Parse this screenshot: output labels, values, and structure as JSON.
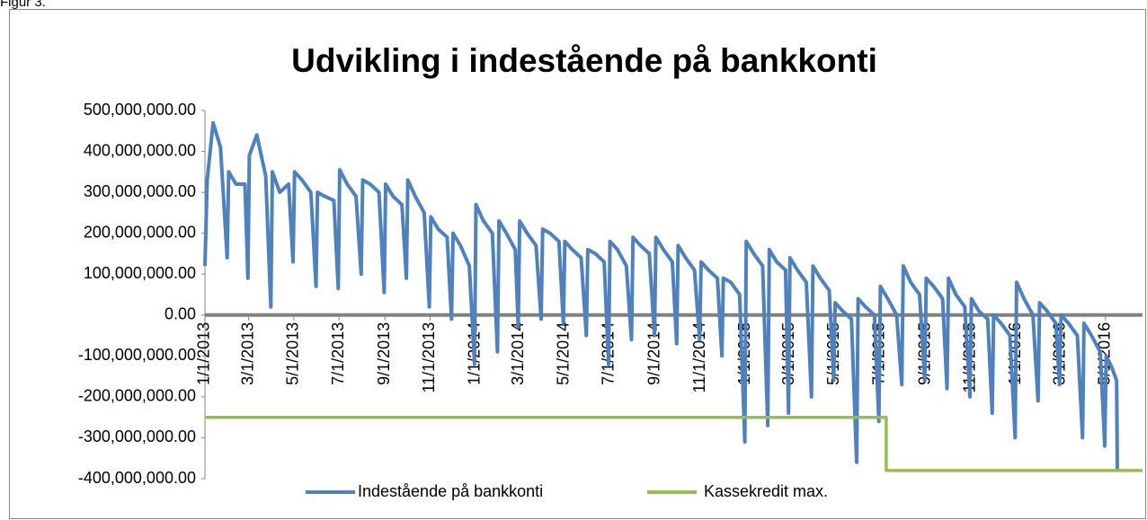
{
  "caption": "Figur 3.",
  "chart_data": {
    "type": "line",
    "title": "Udvikling i indestående på bankkonti",
    "xlim": [
      "1/1/2013",
      "6/20/2016"
    ],
    "xticks": [
      "1/1/2013",
      "3/1/2013",
      "5/1/2013",
      "7/1/2013",
      "9/1/2013",
      "11/1/2013",
      "1/1/2014",
      "3/1/2014",
      "5/1/2014",
      "7/1/2014",
      "9/1/2014",
      "11/1/2014",
      "1/1/2015",
      "3/1/2015",
      "5/1/2015",
      "7/1/2015",
      "9/1/2015",
      "11/1/2015",
      "1/1/2016",
      "3/1/2016",
      "5/1/2016"
    ],
    "ylim": [
      -400000000,
      500000000
    ],
    "yticks": [
      {
        "value": 500000000,
        "label": "500,000,000.00"
      },
      {
        "value": 400000000,
        "label": "400,000,000.00"
      },
      {
        "value": 300000000,
        "label": "300,000,000.00"
      },
      {
        "value": 200000000,
        "label": "200,000,000.00"
      },
      {
        "value": 100000000,
        "label": "100,000,000.00"
      },
      {
        "value": 0,
        "label": "0.00"
      },
      {
        "value": -100000000,
        "label": "-100,000,000.00"
      },
      {
        "value": -200000000,
        "label": "-200,000,000.00"
      },
      {
        "value": -300000000,
        "label": "-300,000,000.00"
      },
      {
        "value": -400000000,
        "label": "-400,000,000.00"
      }
    ],
    "legend": "bottom",
    "series": [
      {
        "name": "Indestående på bankkonti",
        "color": "#4f81bd",
        "x": [
          "1/1/2013",
          "1/4/2013",
          "1/12/2013",
          "1/22/2013",
          "1/31/2013",
          "2/2/2013",
          "2/12/2013",
          "2/24/2013",
          "2/28/2013",
          "3/2/2013",
          "3/12/2013",
          "3/24/2013",
          "3/31/2013",
          "4/2/2013",
          "4/12/2013",
          "4/24/2013",
          "4/30/2013",
          "5/2/2013",
          "5/12/2013",
          "5/24/2013",
          "5/31/2013",
          "6/2/2013",
          "6/12/2013",
          "6/24/2013",
          "6/30/2013",
          "7/2/2013",
          "7/12/2013",
          "7/24/2013",
          "7/31/2013",
          "8/2/2013",
          "8/12/2013",
          "8/24/2013",
          "8/31/2013",
          "9/2/2013",
          "9/12/2013",
          "9/24/2013",
          "9/30/2013",
          "10/2/2013",
          "10/12/2013",
          "10/24/2013",
          "10/31/2013",
          "11/2/2013",
          "11/12/2013",
          "11/24/2013",
          "11/30/2013",
          "12/2/2013",
          "12/12/2013",
          "12/24/2013",
          "12/31/2013",
          "1/2/2014",
          "1/12/2014",
          "1/24/2014",
          "1/31/2014",
          "2/2/2014",
          "2/12/2014",
          "2/24/2014",
          "2/28/2014",
          "3/2/2014",
          "3/12/2014",
          "3/24/2014",
          "3/31/2014",
          "4/2/2014",
          "4/12/2014",
          "4/24/2014",
          "4/30/2014",
          "5/2/2014",
          "5/12/2014",
          "5/24/2014",
          "5/31/2014",
          "6/2/2014",
          "6/12/2014",
          "6/24/2014",
          "6/30/2014",
          "7/2/2014",
          "7/12/2014",
          "7/24/2014",
          "7/31/2014",
          "8/2/2014",
          "8/12/2014",
          "8/24/2014",
          "8/31/2014",
          "9/2/2014",
          "9/12/2014",
          "9/24/2014",
          "9/30/2014",
          "10/2/2014",
          "10/12/2014",
          "10/24/2014",
          "10/31/2014",
          "11/2/2014",
          "11/12/2014",
          "11/24/2014",
          "11/30/2014",
          "12/2/2014",
          "12/12/2014",
          "12/24/2014",
          "12/31/2014",
          "1/2/2015",
          "1/12/2015",
          "1/24/2015",
          "1/31/2015",
          "2/2/2015",
          "2/12/2015",
          "2/24/2015",
          "2/28/2015",
          "3/2/2015",
          "3/12/2015",
          "3/24/2015",
          "3/31/2015",
          "4/2/2015",
          "4/12/2015",
          "4/24/2015",
          "4/30/2015",
          "5/2/2015",
          "5/12/2015",
          "5/24/2015",
          "5/31/2015",
          "6/2/2015",
          "6/12/2015",
          "6/24/2015",
          "6/30/2015",
          "7/2/2015",
          "7/12/2015",
          "7/24/2015",
          "7/31/2015",
          "8/2/2015",
          "8/12/2015",
          "8/24/2015",
          "8/31/2015",
          "9/2/2015",
          "9/12/2015",
          "9/24/2015",
          "9/30/2015",
          "10/2/2015",
          "10/12/2015",
          "10/24/2015",
          "10/31/2015",
          "11/2/2015",
          "11/12/2015",
          "11/24/2015",
          "11/30/2015",
          "12/2/2015",
          "12/12/2015",
          "12/24/2015",
          "12/31/2015",
          "1/2/2016",
          "1/12/2016",
          "1/24/2016",
          "1/31/2016",
          "2/2/2016",
          "2/12/2016",
          "2/24/2016",
          "2/29/2016",
          "3/2/2016",
          "3/12/2016",
          "3/24/2016",
          "3/31/2016",
          "4/2/2016",
          "4/12/2016",
          "4/24/2016",
          "4/30/2016",
          "5/2/2016",
          "5/10/2016",
          "5/16/2016",
          "5/17/2016"
        ],
        "values": [
          120000000,
          330000000,
          470000000,
          410000000,
          140000000,
          350000000,
          320000000,
          320000000,
          90000000,
          390000000,
          440000000,
          340000000,
          20000000,
          350000000,
          300000000,
          320000000,
          130000000,
          350000000,
          330000000,
          300000000,
          70000000,
          300000000,
          290000000,
          280000000,
          65000000,
          355000000,
          320000000,
          290000000,
          100000000,
          330000000,
          320000000,
          300000000,
          55000000,
          320000000,
          290000000,
          270000000,
          90000000,
          330000000,
          290000000,
          250000000,
          20000000,
          240000000,
          210000000,
          190000000,
          -10000000,
          200000000,
          170000000,
          120000000,
          -120000000,
          270000000,
          230000000,
          200000000,
          -90000000,
          230000000,
          200000000,
          160000000,
          -30000000,
          230000000,
          200000000,
          170000000,
          -10000000,
          210000000,
          200000000,
          180000000,
          -20000000,
          180000000,
          160000000,
          140000000,
          -50000000,
          160000000,
          150000000,
          130000000,
          -120000000,
          180000000,
          160000000,
          120000000,
          -60000000,
          190000000,
          170000000,
          150000000,
          -50000000,
          190000000,
          160000000,
          130000000,
          -70000000,
          170000000,
          140000000,
          110000000,
          -60000000,
          130000000,
          110000000,
          90000000,
          -100000000,
          90000000,
          80000000,
          50000000,
          -310000000,
          180000000,
          150000000,
          120000000,
          -270000000,
          160000000,
          130000000,
          110000000,
          -240000000,
          140000000,
          110000000,
          80000000,
          -200000000,
          120000000,
          90000000,
          60000000,
          -160000000,
          30000000,
          10000000,
          -10000000,
          -360000000,
          40000000,
          20000000,
          0,
          -260000000,
          70000000,
          40000000,
          0,
          -170000000,
          120000000,
          80000000,
          50000000,
          -160000000,
          90000000,
          70000000,
          40000000,
          -180000000,
          90000000,
          50000000,
          20000000,
          -200000000,
          40000000,
          10000000,
          -10000000,
          -240000000,
          0,
          -20000000,
          -50000000,
          -300000000,
          80000000,
          40000000,
          0,
          -210000000,
          30000000,
          10000000,
          -20000000,
          -170000000,
          0,
          -20000000,
          -50000000,
          -300000000,
          -20000000,
          -50000000,
          -90000000,
          -320000000,
          -100000000,
          -130000000,
          -160000000,
          -380000000
        ]
      },
      {
        "name": "Kassekredit max.",
        "color": "#9bbb59",
        "x": [
          "1/1/2013",
          "7/10/2015",
          "7/10/2015",
          "6/20/2016"
        ],
        "values": [
          -250000000,
          -250000000,
          -380000000,
          -380000000
        ]
      }
    ]
  }
}
